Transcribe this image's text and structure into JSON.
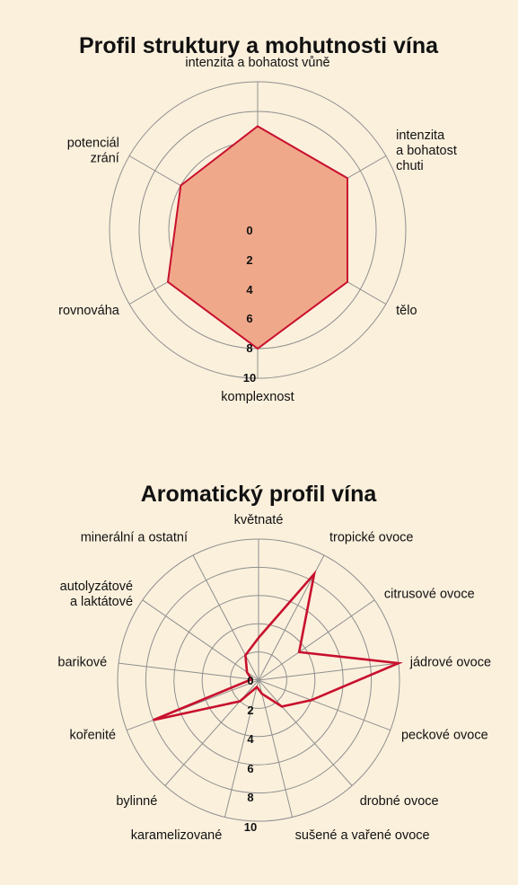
{
  "colors": {
    "background": "#fbf0dc",
    "grid": "#8f8f8f",
    "series_line": "#c8102e",
    "series_fill": "#f0a88a"
  },
  "chart_data": [
    {
      "type": "radar",
      "title": "Profil struktury a mohutnosti vína",
      "rlim": [
        0,
        10
      ],
      "ticks": [
        "0",
        "2",
        "4",
        "6",
        "8",
        "10"
      ],
      "axes": [
        [
          "intenzita a bohatost vůně"
        ],
        [
          "intenzita",
          "a bohatost",
          "chuti"
        ],
        [
          "tělo"
        ],
        [
          "komplexnost"
        ],
        [
          "rovnováha"
        ],
        [
          "potenciál",
          "zrání"
        ]
      ],
      "values": [
        7,
        7,
        7,
        8,
        7,
        6
      ],
      "filled": true
    },
    {
      "type": "radar",
      "title": "Aromatický profil vína",
      "rlim": [
        0,
        10
      ],
      "ticks": [
        "0",
        "2",
        "4",
        "6",
        "8",
        "10"
      ],
      "axes": [
        [
          "květnaté"
        ],
        [
          "tropické ovoce"
        ],
        [
          "citrusové ovoce"
        ],
        [
          "jádrové ovoce"
        ],
        [
          "peckové ovoce"
        ],
        [
          "drobné ovoce"
        ],
        [
          "sušené a vařené ovoce"
        ],
        [
          "karamelizované"
        ],
        [
          "bylinné"
        ],
        [
          "kořenité"
        ],
        [
          "barikové"
        ],
        [
          "autolyzátové",
          "a laktátové"
        ],
        [
          "minerální a ostatní"
        ]
      ],
      "values": [
        3,
        8.5,
        3.5,
        10,
        4,
        2.5,
        1,
        0.5,
        2,
        8,
        0.5,
        1,
        2
      ],
      "filled": false
    }
  ]
}
